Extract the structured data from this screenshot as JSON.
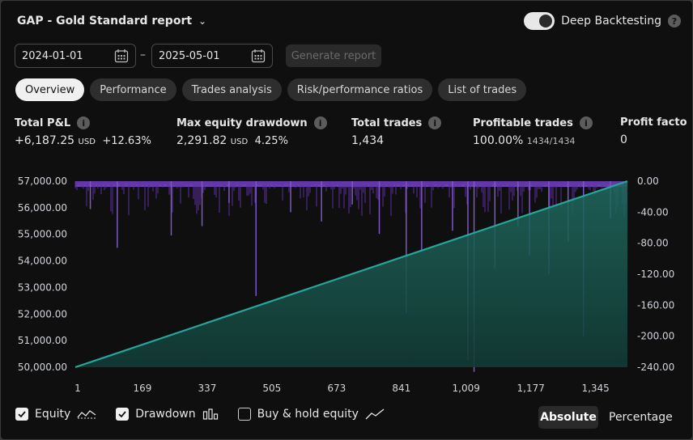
{
  "header": {
    "title": "GAP - Gold Standard report",
    "deep_label": "Deep Backtesting"
  },
  "dates": {
    "start": "2024-01-01",
    "separator": "–",
    "end": "2025-05-01"
  },
  "generate_label": "Generate report",
  "tabs": [
    "Overview",
    "Performance",
    "Trades analysis",
    "Risk/performance ratios",
    "List of trades"
  ],
  "metrics": {
    "pnl": {
      "label": "Total P&L",
      "value": "+6,187.25",
      "unit": "USD",
      "pct": "+12.63%"
    },
    "drawdown": {
      "label": "Max equity drawdown",
      "value": "2,291.82",
      "unit": "USD",
      "pct": "4.25%"
    },
    "trades": {
      "label": "Total trades",
      "value": "1,434"
    },
    "profitable": {
      "label": "Profitable trades",
      "value": "100.00%",
      "sub": "1434/1434"
    },
    "factor": {
      "label": "Profit facto",
      "value": "0"
    }
  },
  "legend": {
    "equity": "Equity",
    "drawdown": "Drawdown",
    "buyhold": "Buy & hold equity"
  },
  "modes": {
    "absolute": "Absolute",
    "percentage": "Percentage"
  },
  "colors": {
    "equity": "#26a69a",
    "drawdown": "#7e57c2",
    "accent": "#22ab94"
  },
  "chart_data": {
    "type": "line",
    "x_ticks": [
      "1",
      "169",
      "337",
      "505",
      "673",
      "841",
      "1,009",
      "1,177",
      "1,345"
    ],
    "x_range": [
      1,
      1434
    ],
    "y_left_ticks": [
      "57,000.00",
      "56,000.00",
      "55,000.00",
      "54,000.00",
      "53,000.00",
      "52,000.00",
      "51,000.00",
      "50,000.00"
    ],
    "y_left_range": [
      50000,
      57000
    ],
    "y_right_ticks": [
      "0.00",
      "-40.00",
      "-80.00",
      "-120.00",
      "-160.00",
      "-200.00",
      "-240.00"
    ],
    "y_right_range": [
      -240,
      0
    ],
    "series": [
      {
        "name": "Equity",
        "x": [
          1,
          1434
        ],
        "values": [
          50000,
          57000
        ]
      },
      {
        "name": "Drawdown",
        "spikes": [
          [
            40,
            -36
          ],
          [
            110,
            -86
          ],
          [
            250,
            -70
          ],
          [
            330,
            -58
          ],
          [
            400,
            -28
          ],
          [
            470,
            -148
          ],
          [
            560,
            -40
          ],
          [
            640,
            -52
          ],
          [
            720,
            -30
          ],
          [
            790,
            -68
          ],
          [
            860,
            -170
          ],
          [
            900,
            -90
          ],
          [
            980,
            -64
          ],
          [
            1020,
            -232
          ],
          [
            1036,
            -246
          ],
          [
            1090,
            -112
          ],
          [
            1150,
            -58
          ],
          [
            1180,
            -96
          ],
          [
            1230,
            -120
          ],
          [
            1280,
            -78
          ],
          [
            1320,
            -200
          ],
          [
            1390,
            -48
          ]
        ]
      }
    ]
  }
}
